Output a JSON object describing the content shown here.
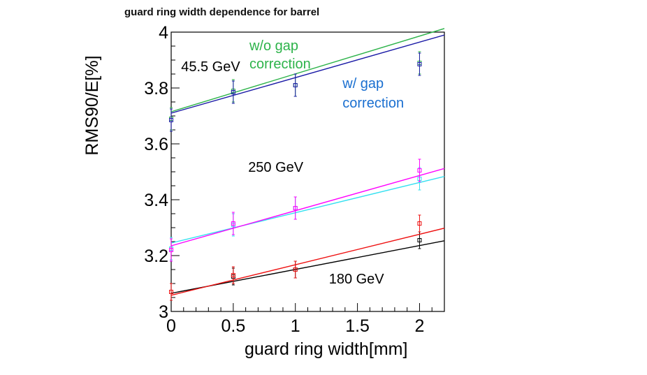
{
  "chart_data": {
    "type": "scatter",
    "title": "guard ring width dependence for barrel",
    "xlabel": "guard ring width[mm]",
    "ylabel": "RMS90/E[%]",
    "xlim": [
      0,
      2.2
    ],
    "ylim": [
      3,
      4
    ],
    "xticks": [
      0,
      0.5,
      1,
      1.5,
      2
    ],
    "xtick_labels": [
      "0",
      "0.5",
      "1",
      "1.5",
      "2"
    ],
    "yticks": [
      3,
      3.2,
      3.4,
      3.6,
      3.8,
      4
    ],
    "ytick_labels": [
      "3",
      "3.2",
      "3.4",
      "3.6",
      "3.8",
      "4"
    ],
    "x": [
      0,
      0.5,
      1,
      2
    ],
    "series": [
      {
        "name": "45.5 GeV w/o gap correction",
        "color": "#2db34a",
        "values": [
          3.69,
          3.79,
          3.81,
          3.89
        ],
        "errors": [
          0.04,
          0.04,
          0.04,
          0.04
        ],
        "fit": [
          3.715,
          4.04
        ]
      },
      {
        "name": "45.5 GeV w/ gap correction",
        "color": "#1a1aa6",
        "values": [
          3.685,
          3.785,
          3.81,
          3.885
        ],
        "errors": [
          0.04,
          0.04,
          0.04,
          0.04
        ],
        "fit": [
          3.71,
          4.015
        ]
      },
      {
        "name": "250 GeV w/o gap correction",
        "color": "#33e0f0",
        "values": [
          3.225,
          3.31,
          3.37,
          3.475
        ],
        "errors": [
          0.04,
          0.04,
          0.04,
          0.04
        ],
        "fit": [
          3.245,
          3.505
        ]
      },
      {
        "name": "250 GeV w/ gap correction",
        "color": "#ff00ff",
        "values": [
          3.22,
          3.315,
          3.37,
          3.505
        ],
        "errors": [
          0.04,
          0.04,
          0.04,
          0.04
        ],
        "fit": [
          3.235,
          3.537
        ]
      },
      {
        "name": "180 GeV w/o gap correction",
        "color": "#000000",
        "values": [
          3.07,
          3.125,
          3.15,
          3.255
        ],
        "errors": [
          0.03,
          0.03,
          0.03,
          0.03
        ],
        "fit": [
          3.065,
          3.27
        ]
      },
      {
        "name": "180 GeV w/ gap correction",
        "color": "#ee1111",
        "values": [
          3.07,
          3.13,
          3.15,
          3.315
        ],
        "errors": [
          0.03,
          0.03,
          0.03,
          0.03
        ],
        "fit": [
          3.058,
          3.32
        ]
      }
    ],
    "annotations": [
      {
        "text": "45.5 GeV",
        "color": "#000000",
        "x": 0.08,
        "y": 3.86
      },
      {
        "text": "w/o gap",
        "color": "#2db34a",
        "x": 0.63,
        "y": 3.935
      },
      {
        "text": "correction",
        "color": "#2db34a",
        "x": 0.63,
        "y": 3.87
      },
      {
        "text": "w/ gap",
        "color": "#1a6fd0",
        "x": 1.38,
        "y": 3.8
      },
      {
        "text": "correction",
        "color": "#1a6fd0",
        "x": 1.38,
        "y": 3.73
      },
      {
        "text": "250 GeV",
        "color": "#000000",
        "x": 0.62,
        "y": 3.5
      },
      {
        "text": "180 GeV",
        "color": "#000000",
        "x": 1.27,
        "y": 3.1
      }
    ],
    "grid": false,
    "legend": "none"
  }
}
